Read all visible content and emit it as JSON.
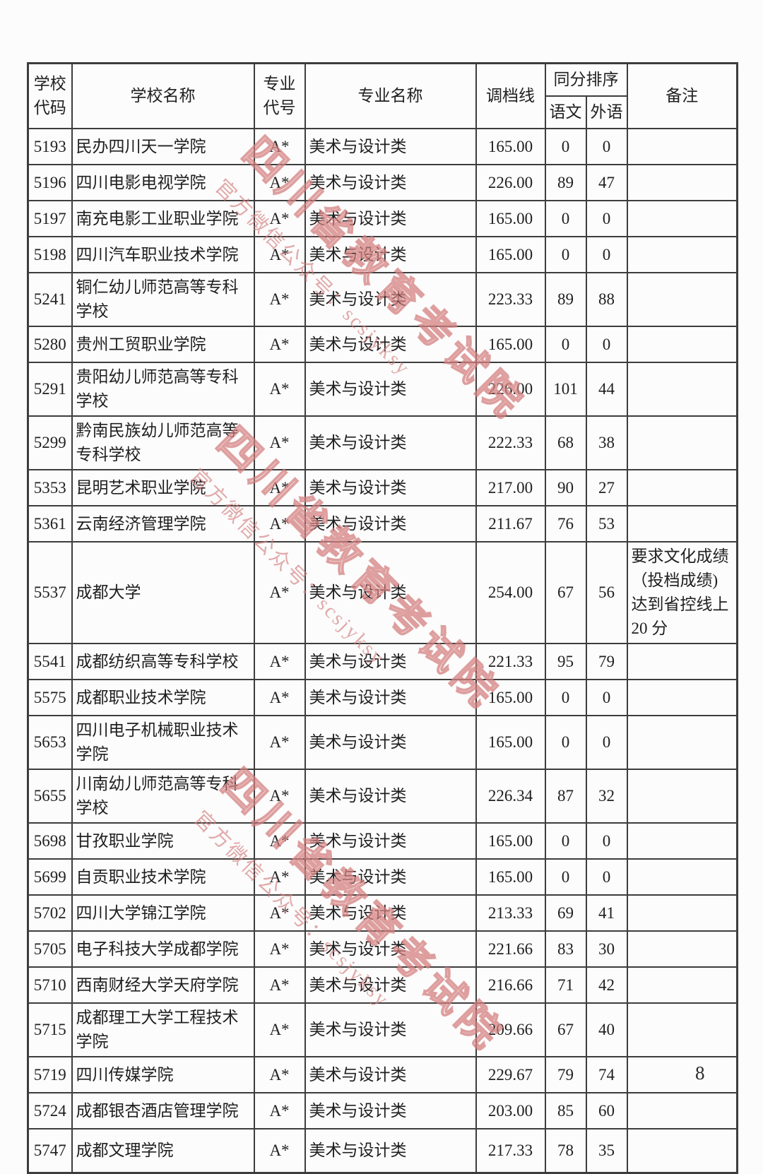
{
  "page_number": "8",
  "watermark": {
    "line1": "四川省教育考试院",
    "line2": "官方微信公众号：scsjyksy",
    "color": "#d37e7e"
  },
  "table": {
    "headers": {
      "school_code": "学校代码",
      "school_name": "学校名称",
      "major_code": "专业代号",
      "major_name": "专业名称",
      "line": "调档线",
      "same_score_sort": "同分排序",
      "chinese": "语文",
      "foreign": "外语",
      "remark": "备注"
    },
    "rows": [
      {
        "code": "5193",
        "school": "民办四川天一学院",
        "major_code": "A*",
        "major": "美术与设计类",
        "line": "165.00",
        "chinese": "0",
        "foreign": "0",
        "remark": ""
      },
      {
        "code": "5196",
        "school": "四川电影电视学院",
        "major_code": "A*",
        "major": "美术与设计类",
        "line": "226.00",
        "chinese": "89",
        "foreign": "47",
        "remark": ""
      },
      {
        "code": "5197",
        "school": "南充电影工业职业学院",
        "major_code": "A*",
        "major": "美术与设计类",
        "line": "165.00",
        "chinese": "0",
        "foreign": "0",
        "remark": ""
      },
      {
        "code": "5198",
        "school": "四川汽车职业技术学院",
        "major_code": "A*",
        "major": "美术与设计类",
        "line": "165.00",
        "chinese": "0",
        "foreign": "0",
        "remark": ""
      },
      {
        "code": "5241",
        "school": "铜仁幼儿师范高等专科学校",
        "major_code": "A*",
        "major": "美术与设计类",
        "line": "223.33",
        "chinese": "89",
        "foreign": "88",
        "remark": ""
      },
      {
        "code": "5280",
        "school": "贵州工贸职业学院",
        "major_code": "A*",
        "major": "美术与设计类",
        "line": "165.00",
        "chinese": "0",
        "foreign": "0",
        "remark": ""
      },
      {
        "code": "5291",
        "school": "贵阳幼儿师范高等专科学校",
        "major_code": "A*",
        "major": "美术与设计类",
        "line": "226.00",
        "chinese": "101",
        "foreign": "44",
        "remark": ""
      },
      {
        "code": "5299",
        "school": "黔南民族幼儿师范高等专科学校",
        "major_code": "A*",
        "major": "美术与设计类",
        "line": "222.33",
        "chinese": "68",
        "foreign": "38",
        "remark": ""
      },
      {
        "code": "5353",
        "school": "昆明艺术职业学院",
        "major_code": "A*",
        "major": "美术与设计类",
        "line": "217.00",
        "chinese": "90",
        "foreign": "27",
        "remark": ""
      },
      {
        "code": "5361",
        "school": "云南经济管理学院",
        "major_code": "A*",
        "major": "美术与设计类",
        "line": "211.67",
        "chinese": "76",
        "foreign": "53",
        "remark": ""
      },
      {
        "code": "5537",
        "school": "成都大学",
        "major_code": "A*",
        "major": "美术与设计类",
        "line": "254.00",
        "chinese": "67",
        "foreign": "56",
        "remark": "要求文化成绩（投档成绩)达到省控线上 20 分"
      },
      {
        "code": "5541",
        "school": "成都纺织高等专科学校",
        "major_code": "A*",
        "major": "美术与设计类",
        "line": "221.33",
        "chinese": "95",
        "foreign": "79",
        "remark": ""
      },
      {
        "code": "5575",
        "school": "成都职业技术学院",
        "major_code": "A*",
        "major": "美术与设计类",
        "line": "165.00",
        "chinese": "0",
        "foreign": "0",
        "remark": ""
      },
      {
        "code": "5653",
        "school": "四川电子机械职业技术学院",
        "major_code": "A*",
        "major": "美术与设计类",
        "line": "165.00",
        "chinese": "0",
        "foreign": "0",
        "remark": ""
      },
      {
        "code": "5655",
        "school": "川南幼儿师范高等专科学校",
        "major_code": "A*",
        "major": "美术与设计类",
        "line": "226.34",
        "chinese": "87",
        "foreign": "32",
        "remark": ""
      },
      {
        "code": "5698",
        "school": "甘孜职业学院",
        "major_code": "A*",
        "major": "美术与设计类",
        "line": "165.00",
        "chinese": "0",
        "foreign": "0",
        "remark": ""
      },
      {
        "code": "5699",
        "school": "自贡职业技术学院",
        "major_code": "A*",
        "major": "美术与设计类",
        "line": "165.00",
        "chinese": "0",
        "foreign": "0",
        "remark": ""
      },
      {
        "code": "5702",
        "school": "四川大学锦江学院",
        "major_code": "A*",
        "major": "美术与设计类",
        "line": "213.33",
        "chinese": "69",
        "foreign": "41",
        "remark": ""
      },
      {
        "code": "5705",
        "school": "电子科技大学成都学院",
        "major_code": "A*",
        "major": "美术与设计类",
        "line": "221.66",
        "chinese": "83",
        "foreign": "30",
        "remark": ""
      },
      {
        "code": "5710",
        "school": "西南财经大学天府学院",
        "major_code": "A*",
        "major": "美术与设计类",
        "line": "216.66",
        "chinese": "71",
        "foreign": "42",
        "remark": ""
      },
      {
        "code": "5715",
        "school": "成都理工大学工程技术学院",
        "major_code": "A*",
        "major": "美术与设计类",
        "line": "209.66",
        "chinese": "67",
        "foreign": "40",
        "remark": ""
      },
      {
        "code": "5719",
        "school": "四川传媒学院",
        "major_code": "A*",
        "major": "美术与设计类",
        "line": "229.67",
        "chinese": "79",
        "foreign": "74",
        "remark": ""
      },
      {
        "code": "5724",
        "school": "成都银杏酒店管理学院",
        "major_code": "A*",
        "major": "美术与设计类",
        "line": "203.00",
        "chinese": "85",
        "foreign": "60",
        "remark": ""
      },
      {
        "code": "5747",
        "school": "成都文理学院",
        "major_code": "A*",
        "major": "美术与设计类",
        "line": "217.33",
        "chinese": "78",
        "foreign": "35",
        "remark": ""
      }
    ]
  }
}
